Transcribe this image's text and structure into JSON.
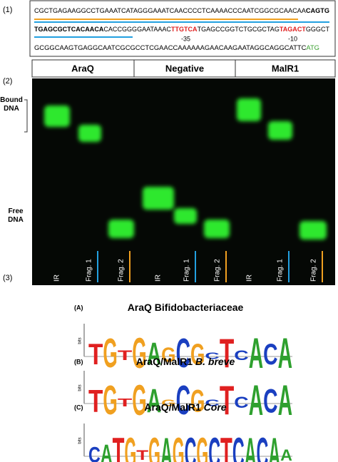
{
  "panel_labels": [
    "(1)",
    "(2)",
    "(3)"
  ],
  "sequence": {
    "line1": [
      "CGCTGAGAAGGCCTGAAATCATAGGGAAATCAACCCCTCAAAACCCAATCGGCGCAACAA",
      "CAGTG"
    ],
    "line2": [
      "TGAGCGCTCACAACA",
      "CACCGGGGAATAAAC",
      "TTGTCA",
      "TGAGCCGGTCTGCGCTAG",
      "TAGACT",
      "GGGCT"
    ],
    "minus35": "-35",
    "minus10": "-10",
    "line3": [
      "GCGGCAAGTGAGGCAATCGCGCCTCGAACCAAAAAAGAACAAGAATAGGCAGGCATTC",
      "ATG"
    ]
  },
  "gel": {
    "groups": [
      "AraQ",
      "Negative",
      "MalR1"
    ],
    "bound_label": "Bound DNA",
    "free_label": "Free DNA",
    "lanes": [
      "IR",
      "Frag. 1",
      "Frag. 2",
      "IR",
      "Frag. 1",
      "Frag. 2",
      "IR",
      "Frag. 1",
      "Frag. 2"
    ]
  },
  "logos": [
    {
      "tag": "(A)",
      "title": [
        "AraQ Bifidobacteriaceae"
      ],
      "axis": "bits",
      "ylim": [
        0,
        2
      ],
      "letters": [
        "T",
        "G",
        "T",
        "G",
        "A",
        "G",
        "C",
        "G",
        "C",
        "T",
        "C",
        "A",
        "C",
        "A"
      ],
      "bits": [
        1.3,
        1.8,
        0.6,
        1.9,
        1.4,
        0.9,
        1.8,
        1.3,
        0.4,
        1.8,
        0.6,
        1.9,
        1.3,
        1.9
      ]
    },
    {
      "tag": "(B)",
      "title": [
        "AraQ/MalR1",
        "B. breve"
      ],
      "axis": "bits",
      "ylim": [
        0,
        2
      ],
      "letters": [
        "T",
        "G",
        "T",
        "G",
        "A",
        "G",
        "C",
        "G",
        "C",
        "T",
        "C",
        "A",
        "C",
        "A"
      ],
      "bits": [
        1.4,
        1.8,
        0.5,
        1.9,
        1.5,
        0.4,
        1.8,
        1.4,
        0.4,
        1.8,
        0.7,
        1.9,
        1.5,
        1.9
      ]
    },
    {
      "tag": "(C)",
      "title": [
        "AraQ/MalR1",
        "Core"
      ],
      "axis": "bits",
      "ylim": [
        0,
        2
      ],
      "letters": [
        "C",
        "A",
        "T",
        "G",
        "T",
        "G",
        "A",
        "G",
        "C",
        "G",
        "C",
        "T",
        "C",
        "A",
        "C",
        "A",
        "A"
      ],
      "bits": [
        1.0,
        1.2,
        1.9,
        1.9,
        0.6,
        1.9,
        1.9,
        1.9,
        1.9,
        1.9,
        1.9,
        1.9,
        1.9,
        1.9,
        1.9,
        1.9,
        0.7
      ]
    }
  ]
}
